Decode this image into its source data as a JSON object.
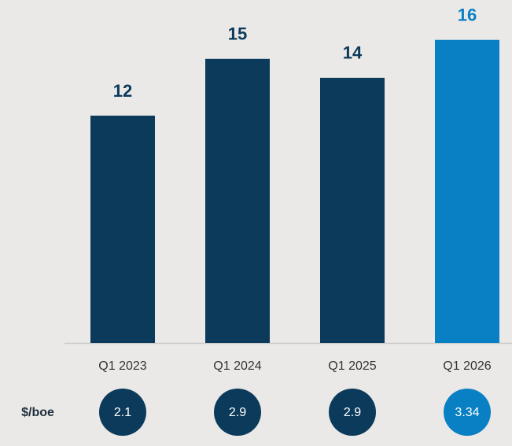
{
  "chart_data": {
    "type": "bar",
    "categories": [
      "Q1 2023",
      "Q1 2024",
      "Q1 2025",
      "Q1 2026"
    ],
    "values": [
      12,
      15,
      14,
      16
    ],
    "colors": [
      "#0c3a5b",
      "#0c3a5b",
      "#0c3a5b",
      "#0a80c4"
    ],
    "unit_row": {
      "label": "$/boe",
      "values": [
        2.1,
        2.9,
        2.9,
        3.34
      ]
    }
  }
}
